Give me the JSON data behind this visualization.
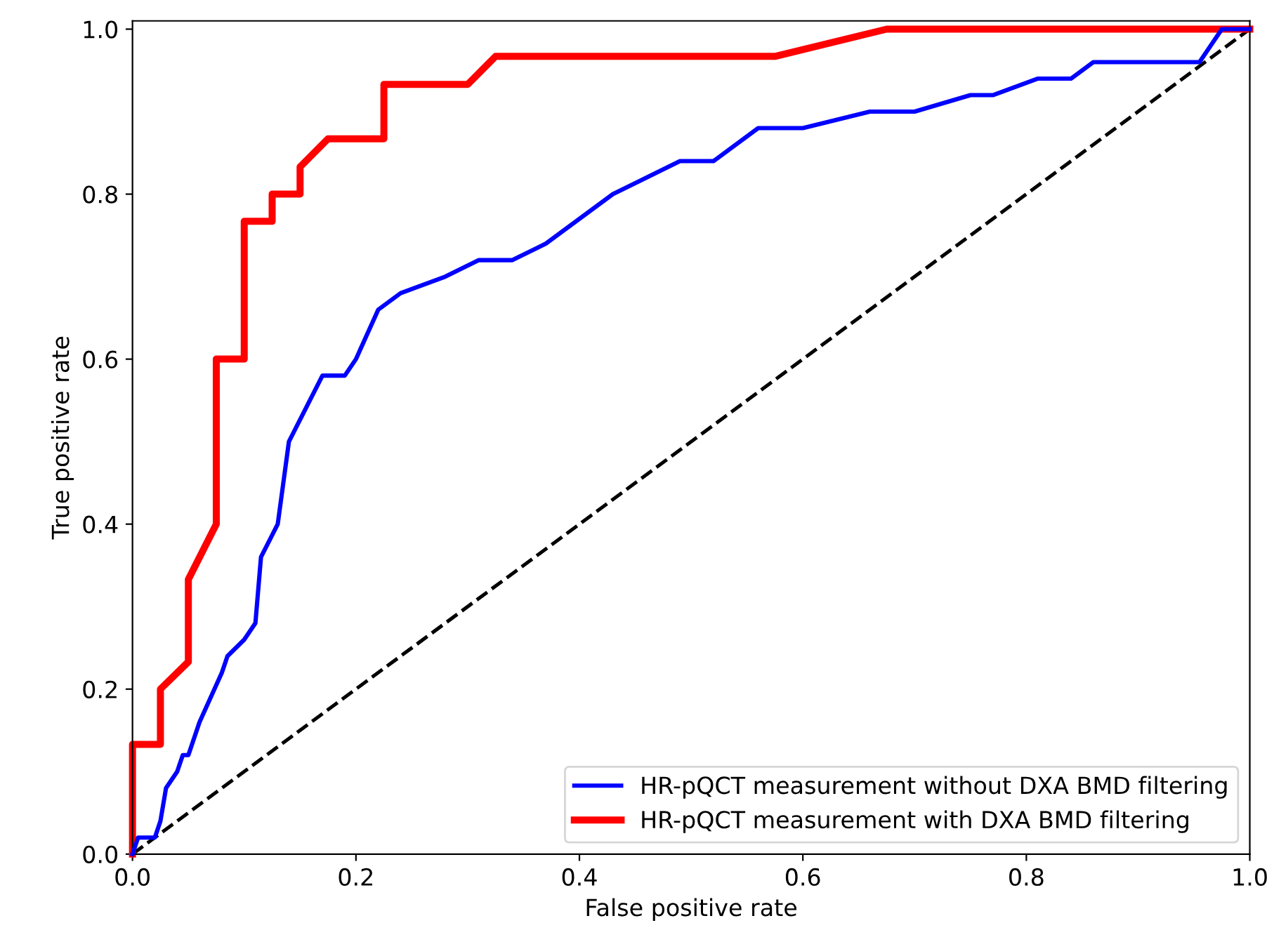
{
  "chart_data": {
    "type": "line",
    "xlabel": "False positive rate",
    "ylabel": "True positive rate",
    "xlim": [
      0,
      1
    ],
    "ylim": [
      0,
      1.01
    ],
    "xticks": [
      {
        "value": 0,
        "label": "0.0"
      },
      {
        "value": 0.2,
        "label": "0.2"
      },
      {
        "value": 0.4,
        "label": "0.4"
      },
      {
        "value": 0.6,
        "label": "0.6"
      },
      {
        "value": 0.8,
        "label": "0.8"
      },
      {
        "value": 1,
        "label": "1.0"
      }
    ],
    "yticks": [
      {
        "value": 0,
        "label": "0.0"
      },
      {
        "value": 0.2,
        "label": "0.2"
      },
      {
        "value": 0.4,
        "label": "0.4"
      },
      {
        "value": 0.6,
        "label": "0.6"
      },
      {
        "value": 0.8,
        "label": "0.8"
      },
      {
        "value": 1,
        "label": "1.0"
      }
    ],
    "grid": false,
    "legend": "bottom right",
    "series": [
      {
        "name": "HR-pQCT measurement without DXA BMD filtering",
        "color": "#0000ff",
        "x": [
          0,
          0.005,
          0.02,
          0.025,
          0.03,
          0.04,
          0.045,
          0.05,
          0.06,
          0.08,
          0.085,
          0.1,
          0.11,
          0.115,
          0.13,
          0.14,
          0.155,
          0.17,
          0.19,
          0.2,
          0.22,
          0.24,
          0.28,
          0.31,
          0.34,
          0.37,
          0.43,
          0.49,
          0.52,
          0.56,
          0.6,
          0.66,
          0.7,
          0.75,
          0.77,
          0.81,
          0.84,
          0.86,
          0.955,
          0.975,
          1
        ],
        "values": [
          0,
          0.02,
          0.02,
          0.04,
          0.08,
          0.1,
          0.12,
          0.12,
          0.16,
          0.22,
          0.24,
          0.26,
          0.28,
          0.36,
          0.4,
          0.5,
          0.54,
          0.58,
          0.58,
          0.6,
          0.66,
          0.68,
          0.7,
          0.72,
          0.72,
          0.74,
          0.8,
          0.84,
          0.84,
          0.88,
          0.88,
          0.9,
          0.9,
          0.92,
          0.92,
          0.94,
          0.94,
          0.96,
          0.96,
          1,
          1
        ]
      },
      {
        "name": "HR-pQCT measurement with DXA BMD filtering",
        "color": "#ff0000",
        "x": [
          0,
          0,
          0.025,
          0.025,
          0.05,
          0.05,
          0.075,
          0.075,
          0.1,
          0.1,
          0.125,
          0.125,
          0.15,
          0.15,
          0.175,
          0.225,
          0.225,
          0.3,
          0.325,
          0.575,
          0.675,
          1
        ],
        "values": [
          0,
          0.133,
          0.133,
          0.2,
          0.233,
          0.333,
          0.4,
          0.6,
          0.6,
          0.767,
          0.767,
          0.8,
          0.8,
          0.833,
          0.867,
          0.867,
          0.933,
          0.933,
          0.967,
          0.967,
          1,
          1
        ]
      },
      {
        "color": "#000000",
        "line_style": "dashed",
        "x": [
          0,
          1
        ],
        "values": [
          0,
          1
        ]
      }
    ]
  }
}
